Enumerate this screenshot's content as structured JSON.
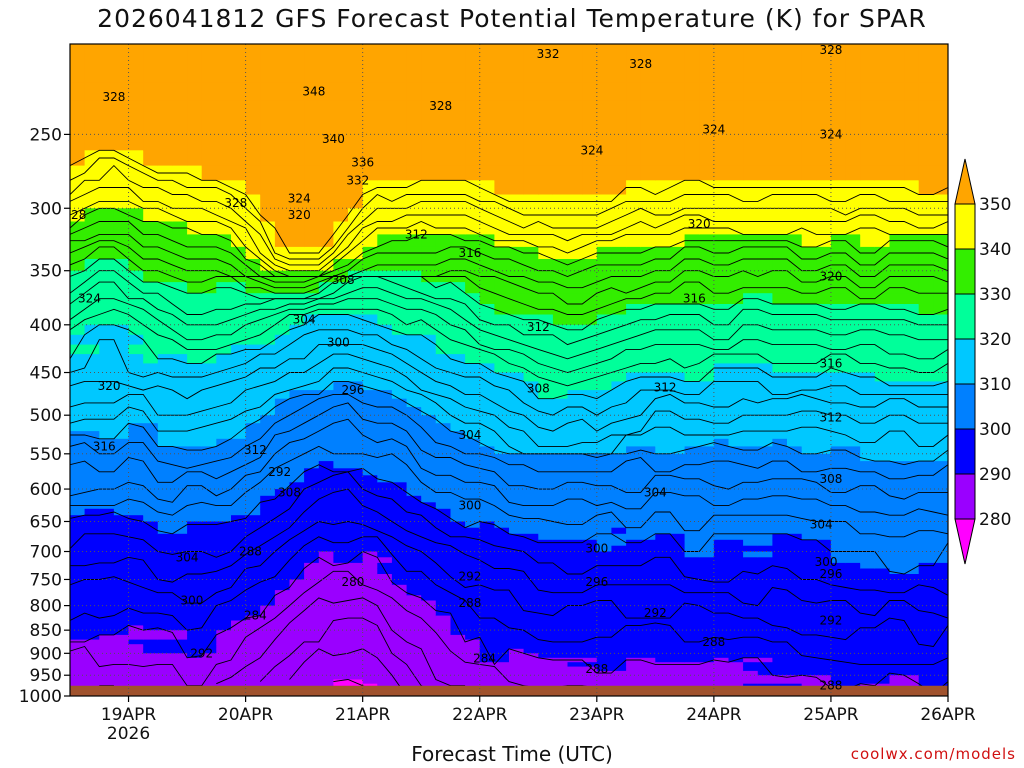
{
  "chart_data": {
    "type": "heatmap",
    "title": "2026041812 GFS Forecast Potential Temperature (K) for SPAR",
    "xlabel": "Forecast Time (UTC)",
    "ylabel": "",
    "x_ticks": [
      "19APR",
      "20APR",
      "21APR",
      "22APR",
      "23APR",
      "24APR",
      "25APR",
      "26APR"
    ],
    "x_year_label": "2026",
    "x_range": [
      "2026-04-18T12:00",
      "2026-04-26T00:00"
    ],
    "y_ticks": [
      250,
      300,
      350,
      400,
      450,
      500,
      550,
      600,
      650,
      700,
      750,
      800,
      850,
      900,
      950,
      1000
    ],
    "y_axis": "pressure (hPa), inverted, log scale",
    "ylim": [
      1000,
      200
    ],
    "grid": true,
    "colorbar": {
      "levels": [
        280,
        290,
        300,
        310,
        320,
        330,
        340,
        350
      ],
      "colors": [
        "#ff00ff",
        "#9a00ff",
        "#0000ff",
        "#0080ff",
        "#00c8ff",
        "#00ff9a",
        "#33ee00",
        "#ffff00",
        "#ffa500"
      ],
      "extend": "both",
      "placement": "right"
    },
    "terrain_color": "#a0522d",
    "contour_labels": [
      {
        "value": 348,
        "time": "2026-04-20T14:00",
        "p": 225
      },
      {
        "value": 340,
        "time": "2026-04-20T18:00",
        "p": 253
      },
      {
        "value": 336,
        "time": "2026-04-21T00:00",
        "p": 268
      },
      {
        "value": 332,
        "time": "2026-04-20T23:00",
        "p": 280
      },
      {
        "value": 332,
        "time": "2026-04-22T14:00",
        "p": 205
      },
      {
        "value": 328,
        "time": "2026-04-18T21:00",
        "p": 228
      },
      {
        "value": 328,
        "time": "2026-04-21T16:00",
        "p": 233
      },
      {
        "value": 328,
        "time": "2026-04-23T09:00",
        "p": 210
      },
      {
        "value": 328,
        "time": "2026-04-25T00:00",
        "p": 203
      },
      {
        "value": 328,
        "time": "2026-04-18T13:00",
        "p": 305
      },
      {
        "value": 328,
        "time": "2026-04-19T22:00",
        "p": 296
      },
      {
        "value": 324,
        "time": "2026-04-20T11:00",
        "p": 293
      },
      {
        "value": 324,
        "time": "2026-04-22T23:00",
        "p": 260
      },
      {
        "value": 324,
        "time": "2026-04-24T00:00",
        "p": 247
      },
      {
        "value": 324,
        "time": "2026-04-25T00:00",
        "p": 250
      },
      {
        "value": 324,
        "time": "2026-04-18T16:00",
        "p": 375
      },
      {
        "value": 320,
        "time": "2026-04-20T11:00",
        "p": 305
      },
      {
        "value": 320,
        "time": "2026-04-23T21:00",
        "p": 312
      },
      {
        "value": 320,
        "time": "2026-04-25T00:00",
        "p": 355
      },
      {
        "value": 320,
        "time": "2026-04-18T20:00",
        "p": 465
      },
      {
        "value": 316,
        "time": "2026-04-21T22:00",
        "p": 335
      },
      {
        "value": 316,
        "time": "2026-04-23T20:00",
        "p": 375
      },
      {
        "value": 316,
        "time": "2026-04-25T00:00",
        "p": 440
      },
      {
        "value": 316,
        "time": "2026-04-18T19:00",
        "p": 540
      },
      {
        "value": 312,
        "time": "2026-04-20T02:00",
        "p": 545
      },
      {
        "value": 312,
        "time": "2026-04-21T11:00",
        "p": 320
      },
      {
        "value": 312,
        "time": "2026-04-22T12:00",
        "p": 402
      },
      {
        "value": 312,
        "time": "2026-04-23T14:00",
        "p": 467
      },
      {
        "value": 312,
        "time": "2026-04-25T00:00",
        "p": 503
      },
      {
        "value": 308,
        "time": "2026-04-20T20:00",
        "p": 358
      },
      {
        "value": 308,
        "time": "2026-04-22T12:00",
        "p": 468
      },
      {
        "value": 308,
        "time": "2026-04-20T09:00",
        "p": 605
      },
      {
        "value": 308,
        "time": "2026-04-25T00:00",
        "p": 585
      },
      {
        "value": 304,
        "time": "2026-04-20T12:00",
        "p": 395
      },
      {
        "value": 304,
        "time": "2026-04-21T22:00",
        "p": 525
      },
      {
        "value": 304,
        "time": "2026-04-23T12:00",
        "p": 605
      },
      {
        "value": 304,
        "time": "2026-04-24T22:00",
        "p": 655
      },
      {
        "value": 304,
        "time": "2026-04-19T12:00",
        "p": 710
      },
      {
        "value": 300,
        "time": "2026-04-20T19:00",
        "p": 418
      },
      {
        "value": 300,
        "time": "2026-04-21T22:00",
        "p": 625
      },
      {
        "value": 300,
        "time": "2026-04-23T00:00",
        "p": 695
      },
      {
        "value": 300,
        "time": "2026-04-24T23:00",
        "p": 718
      },
      {
        "value": 300,
        "time": "2026-04-19T13:00",
        "p": 790
      },
      {
        "value": 296,
        "time": "2026-04-20T22:00",
        "p": 470
      },
      {
        "value": 296,
        "time": "2026-04-23T00:00",
        "p": 755
      },
      {
        "value": 296,
        "time": "2026-04-25T00:00",
        "p": 740
      },
      {
        "value": 292,
        "time": "2026-04-20T07:00",
        "p": 575
      },
      {
        "value": 292,
        "time": "2026-04-21T22:00",
        "p": 745
      },
      {
        "value": 292,
        "time": "2026-04-23T12:00",
        "p": 815
      },
      {
        "value": 292,
        "time": "2026-04-25T00:00",
        "p": 830
      },
      {
        "value": 292,
        "time": "2026-04-19T15:00",
        "p": 900
      },
      {
        "value": 288,
        "time": "2026-04-20T01:00",
        "p": 700
      },
      {
        "value": 288,
        "time": "2026-04-21T22:00",
        "p": 795
      },
      {
        "value": 288,
        "time": "2026-04-24T00:00",
        "p": 875
      },
      {
        "value": 288,
        "time": "2026-04-23T00:00",
        "p": 935
      },
      {
        "value": 288,
        "time": "2026-04-25T00:00",
        "p": 975
      },
      {
        "value": 284,
        "time": "2026-04-20T02:00",
        "p": 820
      },
      {
        "value": 284,
        "time": "2026-04-22T01:00",
        "p": 912
      },
      {
        "value": 280,
        "time": "2026-04-20T22:00",
        "p": 755
      }
    ]
  },
  "footer": {
    "credit": "coolwx.com/models"
  }
}
